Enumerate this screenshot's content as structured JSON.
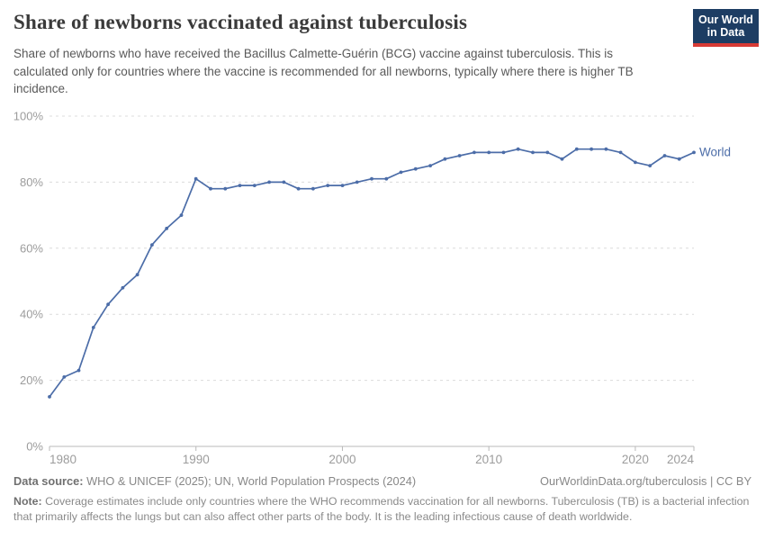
{
  "header": {
    "title": "Share of newborns vaccinated against tuberculosis",
    "subtitle": "Share of newborns who have received the Bacillus Calmette-Guérin (BCG) vaccine against tuberculosis. This is calculated only for countries where the vaccine is recommended for all newborns, typically where there is higher TB incidence.",
    "logo": {
      "line1": "Our World",
      "line2": "in Data",
      "bg_color": "#1d3d63",
      "accent_color": "#d73a35"
    }
  },
  "chart_data": {
    "type": "line",
    "title": "Share of newborns vaccinated against tuberculosis",
    "xlabel": "",
    "ylabel": "",
    "xlim": [
      1980,
      2024
    ],
    "ylim": [
      0,
      100
    ],
    "grid": "horizontal-dashed",
    "legend_position": "end-of-line-label",
    "x_ticks": [
      1980,
      1990,
      2000,
      2010,
      2020,
      2024
    ],
    "y_ticks": [
      0,
      20,
      40,
      60,
      80,
      100
    ],
    "y_tick_suffix": "%",
    "series": [
      {
        "name": "World",
        "color": "#4c6da8",
        "x": [
          1980,
          1981,
          1982,
          1983,
          1984,
          1985,
          1986,
          1987,
          1988,
          1989,
          1990,
          1991,
          1992,
          1993,
          1994,
          1995,
          1996,
          1997,
          1998,
          1999,
          2000,
          2001,
          2002,
          2003,
          2004,
          2005,
          2006,
          2007,
          2008,
          2009,
          2010,
          2011,
          2012,
          2013,
          2014,
          2015,
          2016,
          2017,
          2018,
          2019,
          2020,
          2021,
          2022,
          2023,
          2024
        ],
        "values": [
          15,
          21,
          23,
          36,
          43,
          48,
          52,
          61,
          66,
          70,
          81,
          78,
          78,
          79,
          79,
          80,
          80,
          78,
          78,
          79,
          79,
          80,
          81,
          81,
          83,
          84,
          85,
          87,
          88,
          89,
          89,
          89,
          90,
          89,
          89,
          87,
          90,
          90,
          90,
          89,
          86,
          85,
          88,
          87,
          89
        ]
      }
    ]
  },
  "footer": {
    "data_source_label": "Data source:",
    "data_source_text": " WHO & UNICEF (2025); UN, World Population Prospects (2024)",
    "link": "OurWorldinData.org/tuberculosis | CC BY",
    "note_label": "Note:",
    "note_text": " Coverage estimates include only countries where the WHO recommends vaccination for all newborns. Tuberculosis (TB) is a bacterial infection that primarily affects the lungs but can also affect other parts of the body. It is the leading infectious cause of death worldwide."
  }
}
